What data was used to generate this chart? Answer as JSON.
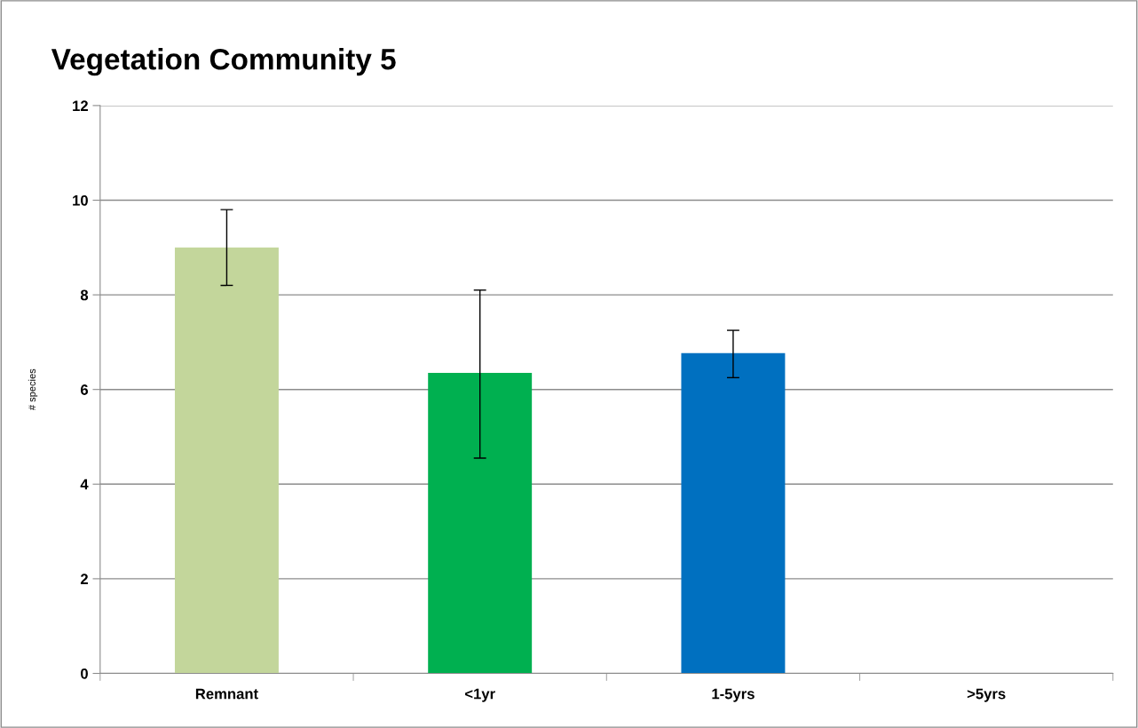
{
  "chart_data": {
    "type": "bar",
    "title": "Vegetation Community 5",
    "ylabel": "# species",
    "categories": [
      "Remnant",
      "<1yr",
      "1-5yrs",
      ">5yrs"
    ],
    "values": [
      9.0,
      6.35,
      6.77,
      null
    ],
    "colors": [
      "#c3d69b",
      "#00b050",
      "#0070c0",
      "#0070c0"
    ],
    "errors": [
      [
        8.2,
        9.8
      ],
      [
        4.55,
        8.1
      ],
      [
        6.25,
        7.25
      ],
      null
    ],
    "ylim": [
      0,
      12
    ],
    "yticks": [
      0,
      2,
      4,
      6,
      8,
      10,
      12
    ],
    "grid": "y",
    "legend": false
  }
}
